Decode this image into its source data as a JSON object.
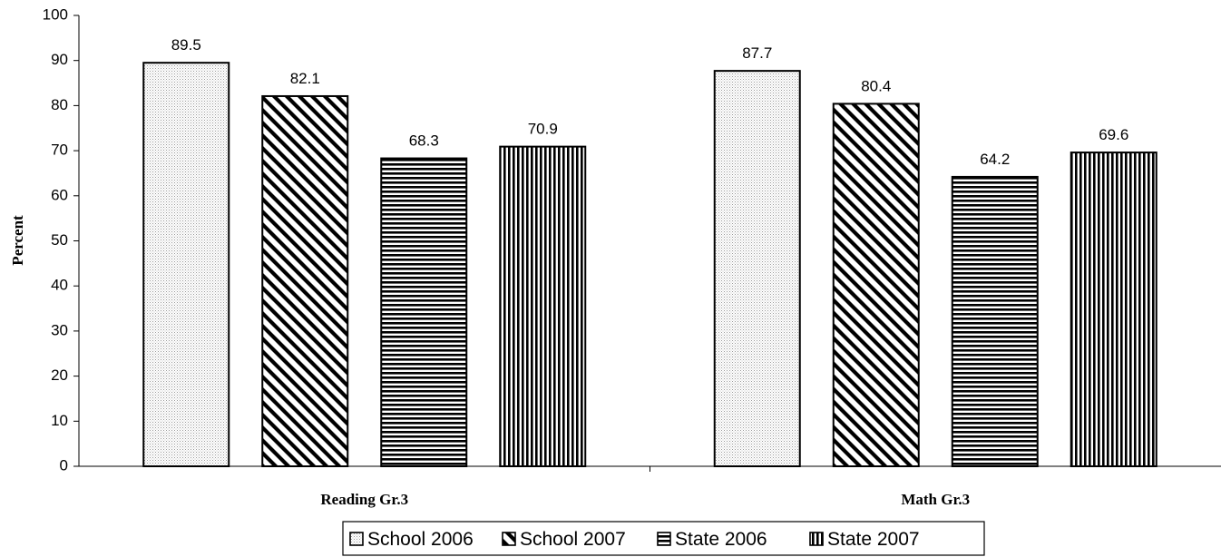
{
  "chart_data": {
    "type": "bar",
    "title": "",
    "xlabel": "",
    "ylabel": "Percent",
    "ylim": [
      0,
      100
    ],
    "yticks": [
      0,
      10,
      20,
      30,
      40,
      50,
      60,
      70,
      80,
      90,
      100
    ],
    "categories": [
      "Reading Gr.3",
      "Math Gr.3"
    ],
    "series": [
      {
        "name": "School 2006",
        "values": [
          89.5,
          87.7
        ],
        "pattern": "dots"
      },
      {
        "name": "School 2007",
        "values": [
          82.1,
          80.4
        ],
        "pattern": "diagonal"
      },
      {
        "name": "State 2006",
        "values": [
          68.3,
          64.2
        ],
        "pattern": "horizontal"
      },
      {
        "name": "State 2007",
        "values": [
          70.9,
          69.6
        ],
        "pattern": "vertical"
      }
    ],
    "grid": false,
    "legend_position": "bottom",
    "colors": {
      "bar_stroke": "#000000",
      "fill": "#ffffff"
    }
  }
}
